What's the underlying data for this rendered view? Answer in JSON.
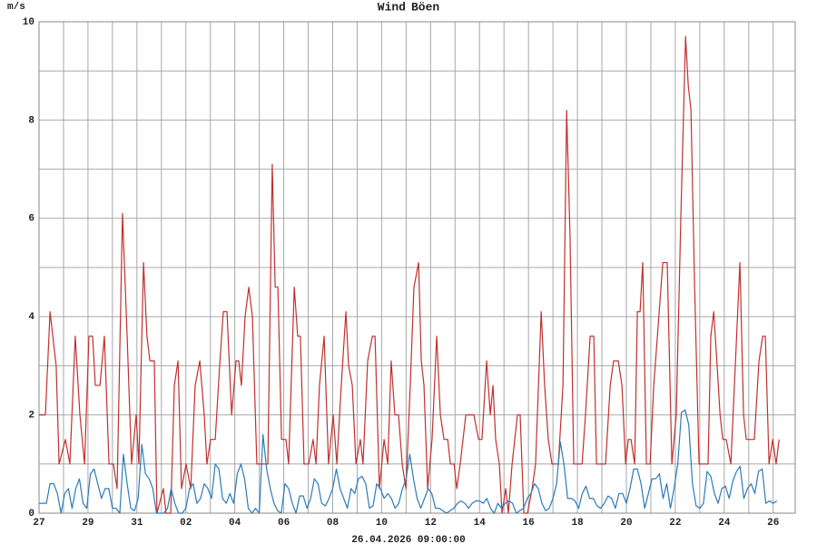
{
  "chart_data": {
    "type": "line",
    "y_label": "m/s",
    "x_label": "26.04.2026 09:00:00",
    "xlim": [
      0,
      30.9
    ],
    "xticks": [
      {
        "value": 0,
        "label": "27"
      },
      {
        "value": 2,
        "label": "29"
      },
      {
        "value": 4,
        "label": "31"
      },
      {
        "value": 6,
        "label": "02"
      },
      {
        "value": 8,
        "label": "04"
      },
      {
        "value": 10,
        "label": "06"
      },
      {
        "value": 12,
        "label": "08"
      },
      {
        "value": 14,
        "label": "10"
      },
      {
        "value": 16,
        "label": "12"
      },
      {
        "value": 18,
        "label": "14"
      },
      {
        "value": 20,
        "label": "16"
      },
      {
        "value": 22,
        "label": "18"
      },
      {
        "value": 24,
        "label": "20"
      },
      {
        "value": 26,
        "label": "22"
      },
      {
        "value": 28,
        "label": "24"
      },
      {
        "value": 30,
        "label": "26"
      }
    ],
    "xminor": [
      1,
      3,
      5,
      7,
      9,
      11,
      13,
      15,
      17,
      19,
      21,
      23,
      25,
      27,
      29
    ],
    "ylim": [
      0,
      10
    ],
    "yticks": [
      0,
      2,
      4,
      6,
      8,
      10
    ],
    "yminor": [
      1,
      3,
      5,
      7,
      9
    ],
    "grid": true,
    "series": [
      {
        "name": "Wind",
        "color": "#2b7bba",
        "x": [
          0,
          0.15,
          0.3,
          0.45,
          0.6,
          0.75,
          0.9,
          1.05,
          1.2,
          1.35,
          1.5,
          1.65,
          1.8,
          1.95,
          2.1,
          2.25,
          2.4,
          2.55,
          2.7,
          2.85,
          3,
          3.15,
          3.3,
          3.45,
          3.6,
          3.75,
          3.9,
          4.05,
          4.2,
          4.35,
          4.5,
          4.65,
          4.8,
          4.95,
          5.1,
          5.25,
          5.4,
          5.55,
          5.7,
          5.85,
          6,
          6.15,
          6.3,
          6.45,
          6.6,
          6.75,
          6.9,
          7.05,
          7.2,
          7.35,
          7.5,
          7.65,
          7.8,
          7.95,
          8.1,
          8.25,
          8.4,
          8.55,
          8.7,
          8.85,
          9,
          9.15,
          9.3,
          9.45,
          9.6,
          9.75,
          9.9,
          10.05,
          10.2,
          10.35,
          10.5,
          10.65,
          10.8,
          10.95,
          11.1,
          11.25,
          11.4,
          11.55,
          11.7,
          11.85,
          12,
          12.15,
          12.3,
          12.45,
          12.6,
          12.75,
          12.9,
          13.05,
          13.2,
          13.35,
          13.5,
          13.65,
          13.8,
          13.95,
          14.1,
          14.25,
          14.4,
          14.55,
          14.7,
          14.85,
          15,
          15.15,
          15.3,
          15.45,
          15.6,
          15.75,
          15.9,
          16.05,
          16.2,
          16.35,
          16.5,
          16.65,
          16.8,
          16.95,
          17.1,
          17.25,
          17.4,
          17.55,
          17.7,
          17.85,
          18,
          18.15,
          18.3,
          18.45,
          18.6,
          18.75,
          18.9,
          19.05,
          19.2,
          19.35,
          19.5,
          19.65,
          19.8,
          19.95,
          20.1,
          20.25,
          20.4,
          20.55,
          20.7,
          20.85,
          21,
          21.15,
          21.3,
          21.45,
          21.6,
          21.75,
          21.9,
          22.05,
          22.2,
          22.35,
          22.5,
          22.65,
          22.8,
          22.95,
          23.1,
          23.25,
          23.4,
          23.55,
          23.7,
          23.85,
          24,
          24.15,
          24.3,
          24.45,
          24.6,
          24.75,
          24.9,
          25.05,
          25.2,
          25.35,
          25.5,
          25.65,
          25.8,
          25.95,
          26.1,
          26.25,
          26.4,
          26.55,
          26.7,
          26.85,
          27,
          27.15,
          27.3,
          27.45,
          27.6,
          27.75,
          27.9,
          28.05,
          28.2,
          28.35,
          28.5,
          28.65,
          28.8,
          28.95,
          29.1,
          29.25,
          29.4,
          29.55,
          29.7,
          29.85,
          30,
          30.15
        ],
        "values": [
          0.2,
          0.2,
          0.2,
          0.6,
          0.6,
          0.4,
          0,
          0.4,
          0.5,
          0.1,
          0.5,
          0.7,
          0.2,
          0.1,
          0.8,
          0.9,
          0.6,
          0.3,
          0.5,
          0.5,
          0.1,
          0.1,
          0,
          1.2,
          0.6,
          0.1,
          0.05,
          0.3,
          1.4,
          0.8,
          0.7,
          0.5,
          0,
          0,
          0,
          0.1,
          0.5,
          0.2,
          0,
          0,
          0.1,
          0.5,
          0.6,
          0.2,
          0.3,
          0.6,
          0.5,
          0.3,
          1.0,
          0.9,
          0.3,
          0.2,
          0.4,
          0.2,
          0.8,
          1.0,
          0.7,
          0.1,
          0,
          0.1,
          0,
          1.6,
          0.9,
          0.5,
          0.2,
          0.05,
          0,
          0.6,
          0.5,
          0.2,
          0,
          0.35,
          0.35,
          0.1,
          0.3,
          0.7,
          0.6,
          0.2,
          0.15,
          0.3,
          0.5,
          0.9,
          0.5,
          0.3,
          0.1,
          0.5,
          0.4,
          0.7,
          0.75,
          0.6,
          0.1,
          0.15,
          0.6,
          0.5,
          0.3,
          0.4,
          0.3,
          0.1,
          0.2,
          0.5,
          0.7,
          1.2,
          0.7,
          0.3,
          0.1,
          0.3,
          0.5,
          0.4,
          0.1,
          0.1,
          0.05,
          0,
          0.05,
          0.1,
          0.2,
          0.25,
          0.2,
          0.1,
          0.2,
          0.25,
          0.25,
          0.2,
          0.3,
          0.1,
          0,
          0.2,
          0.1,
          0.2,
          0.25,
          0.2,
          0,
          0.05,
          0.1,
          0.3,
          0.4,
          0.6,
          0.5,
          0.2,
          0.05,
          0.1,
          0.3,
          0.6,
          1.45,
          1.0,
          0.3,
          0.3,
          0.25,
          0.1,
          0.4,
          0.55,
          0.3,
          0.3,
          0.15,
          0.1,
          0.2,
          0.35,
          0.3,
          0.1,
          0.4,
          0.4,
          0.2,
          0.5,
          0.9,
          0.9,
          0.6,
          0.1,
          0.4,
          0.7,
          0.7,
          0.8,
          0.3,
          0.6,
          0.1,
          0.5,
          1.0,
          2.05,
          2.1,
          1.8,
          0.6,
          0.15,
          0.1,
          0.2,
          0.85,
          0.75,
          0.4,
          0.2,
          0.5,
          0.55,
          0.3,
          0.65,
          0.85,
          0.95,
          0.3,
          0.5,
          0.6,
          0.4,
          0.85,
          0.9,
          0.2,
          0.25,
          0.2,
          0.25
        ]
      },
      {
        "name": "Böen",
        "color": "#c0302e",
        "x": [
          0,
          0.26,
          0.45,
          0.7,
          0.82,
          1.08,
          1.26,
          1.48,
          1.67,
          1.86,
          2.04,
          2.19,
          2.3,
          2.49,
          2.67,
          2.86,
          3.04,
          3.19,
          3.41,
          3.6,
          3.78,
          3.97,
          4.08,
          4.27,
          4.41,
          4.53,
          4.71,
          4.82,
          5.08,
          5.19,
          5.38,
          5.53,
          5.68,
          5.82,
          6.01,
          6.2,
          6.38,
          6.57,
          6.75,
          6.86,
          7.01,
          7.2,
          7.38,
          7.53,
          7.68,
          7.87,
          8.05,
          8.16,
          8.27,
          8.42,
          8.57,
          8.72,
          8.9,
          9.16,
          9.35,
          9.53,
          9.65,
          9.76,
          9.91,
          10.09,
          10.2,
          10.43,
          10.57,
          10.68,
          10.83,
          11.02,
          11.2,
          11.32,
          11.46,
          11.65,
          11.83,
          12.02,
          12.17,
          12.35,
          12.54,
          12.65,
          12.8,
          12.95,
          13.13,
          13.24,
          13.43,
          13.62,
          13.73,
          13.91,
          14.1,
          14.25,
          14.39,
          14.54,
          14.69,
          14.84,
          14.99,
          15.17,
          15.32,
          15.51,
          15.62,
          15.73,
          15.88,
          16.06,
          16.25,
          16.4,
          16.55,
          16.7,
          16.81,
          16.96,
          17.07,
          17.21,
          17.44,
          17.62,
          17.77,
          17.96,
          18.1,
          18.29,
          18.44,
          18.55,
          18.66,
          18.81,
          18.92,
          19.07,
          19.18,
          19.33,
          19.55,
          19.66,
          19.81,
          19.96,
          20.15,
          20.29,
          20.52,
          20.66,
          20.81,
          20.96,
          21.22,
          21.41,
          21.56,
          21.7,
          21.85,
          22.04,
          22.19,
          22.33,
          22.52,
          22.67,
          22.78,
          22.96,
          23.15,
          23.34,
          23.48,
          23.67,
          23.82,
          23.97,
          24.08,
          24.19,
          24.34,
          24.45,
          24.56,
          24.67,
          24.82,
          24.97,
          25.12,
          25.49,
          25.67,
          25.86,
          26.04,
          26.23,
          26.42,
          26.53,
          26.64,
          26.79,
          26.97,
          27.16,
          27.34,
          27.45,
          27.57,
          27.71,
          27.83,
          27.94,
          28.08,
          28.27,
          28.46,
          28.64,
          28.79,
          28.9,
          29.05,
          29.23,
          29.42,
          29.57,
          29.68,
          29.83,
          29.98,
          30.12,
          30.24
        ],
        "values": [
          2,
          2,
          4.1,
          3,
          1,
          1.5,
          1,
          3.6,
          2,
          1,
          3.6,
          3.6,
          2.6,
          2.6,
          3.6,
          1,
          1,
          0.5,
          6.1,
          3.6,
          1,
          2,
          1,
          5.1,
          3.6,
          3.1,
          3.1,
          0,
          0.5,
          0,
          0,
          2.6,
          3.1,
          0.5,
          1,
          0.5,
          2.6,
          3.1,
          2,
          1,
          1.5,
          1.5,
          3,
          4.1,
          4.1,
          2,
          3.1,
          3.1,
          2.6,
          4,
          4.6,
          4,
          1,
          1,
          1,
          7.1,
          4.6,
          4.6,
          1.5,
          1.5,
          1,
          4.6,
          3.6,
          3.6,
          1,
          1,
          1.5,
          1,
          2.6,
          3.6,
          1,
          2,
          1,
          2.6,
          4.1,
          3,
          2.6,
          1,
          1.5,
          1,
          3.1,
          3.6,
          3.6,
          0.5,
          1.5,
          1,
          3.1,
          2,
          2,
          1,
          0.5,
          2.6,
          4.6,
          5.1,
          3.1,
          2.6,
          0.5,
          1.5,
          3.6,
          2,
          1.5,
          1.5,
          1,
          1,
          0.5,
          1,
          2,
          2,
          2,
          1.5,
          1.5,
          3.1,
          2,
          2.6,
          1.5,
          1,
          0,
          0.5,
          0,
          1,
          2,
          2,
          0,
          0,
          0.5,
          1,
          4.1,
          2.6,
          1.5,
          1,
          1,
          2.6,
          8.2,
          5.6,
          1,
          1,
          1,
          2,
          3.6,
          3.6,
          1,
          1,
          1,
          2.6,
          3.1,
          3.1,
          2.6,
          1,
          1.5,
          1.5,
          1,
          4.1,
          4.1,
          5.1,
          1,
          1,
          2.6,
          5.1,
          5.1,
          1,
          2,
          6.1,
          9.7,
          8.7,
          8.2,
          4.6,
          1,
          1,
          1,
          3.6,
          4.1,
          3,
          2,
          1.5,
          1.5,
          1,
          3.1,
          5.1,
          2,
          1.5,
          1.5,
          1.5,
          3.1,
          3.6,
          3.6,
          1,
          1.5,
          1,
          1.5
        ]
      }
    ]
  }
}
